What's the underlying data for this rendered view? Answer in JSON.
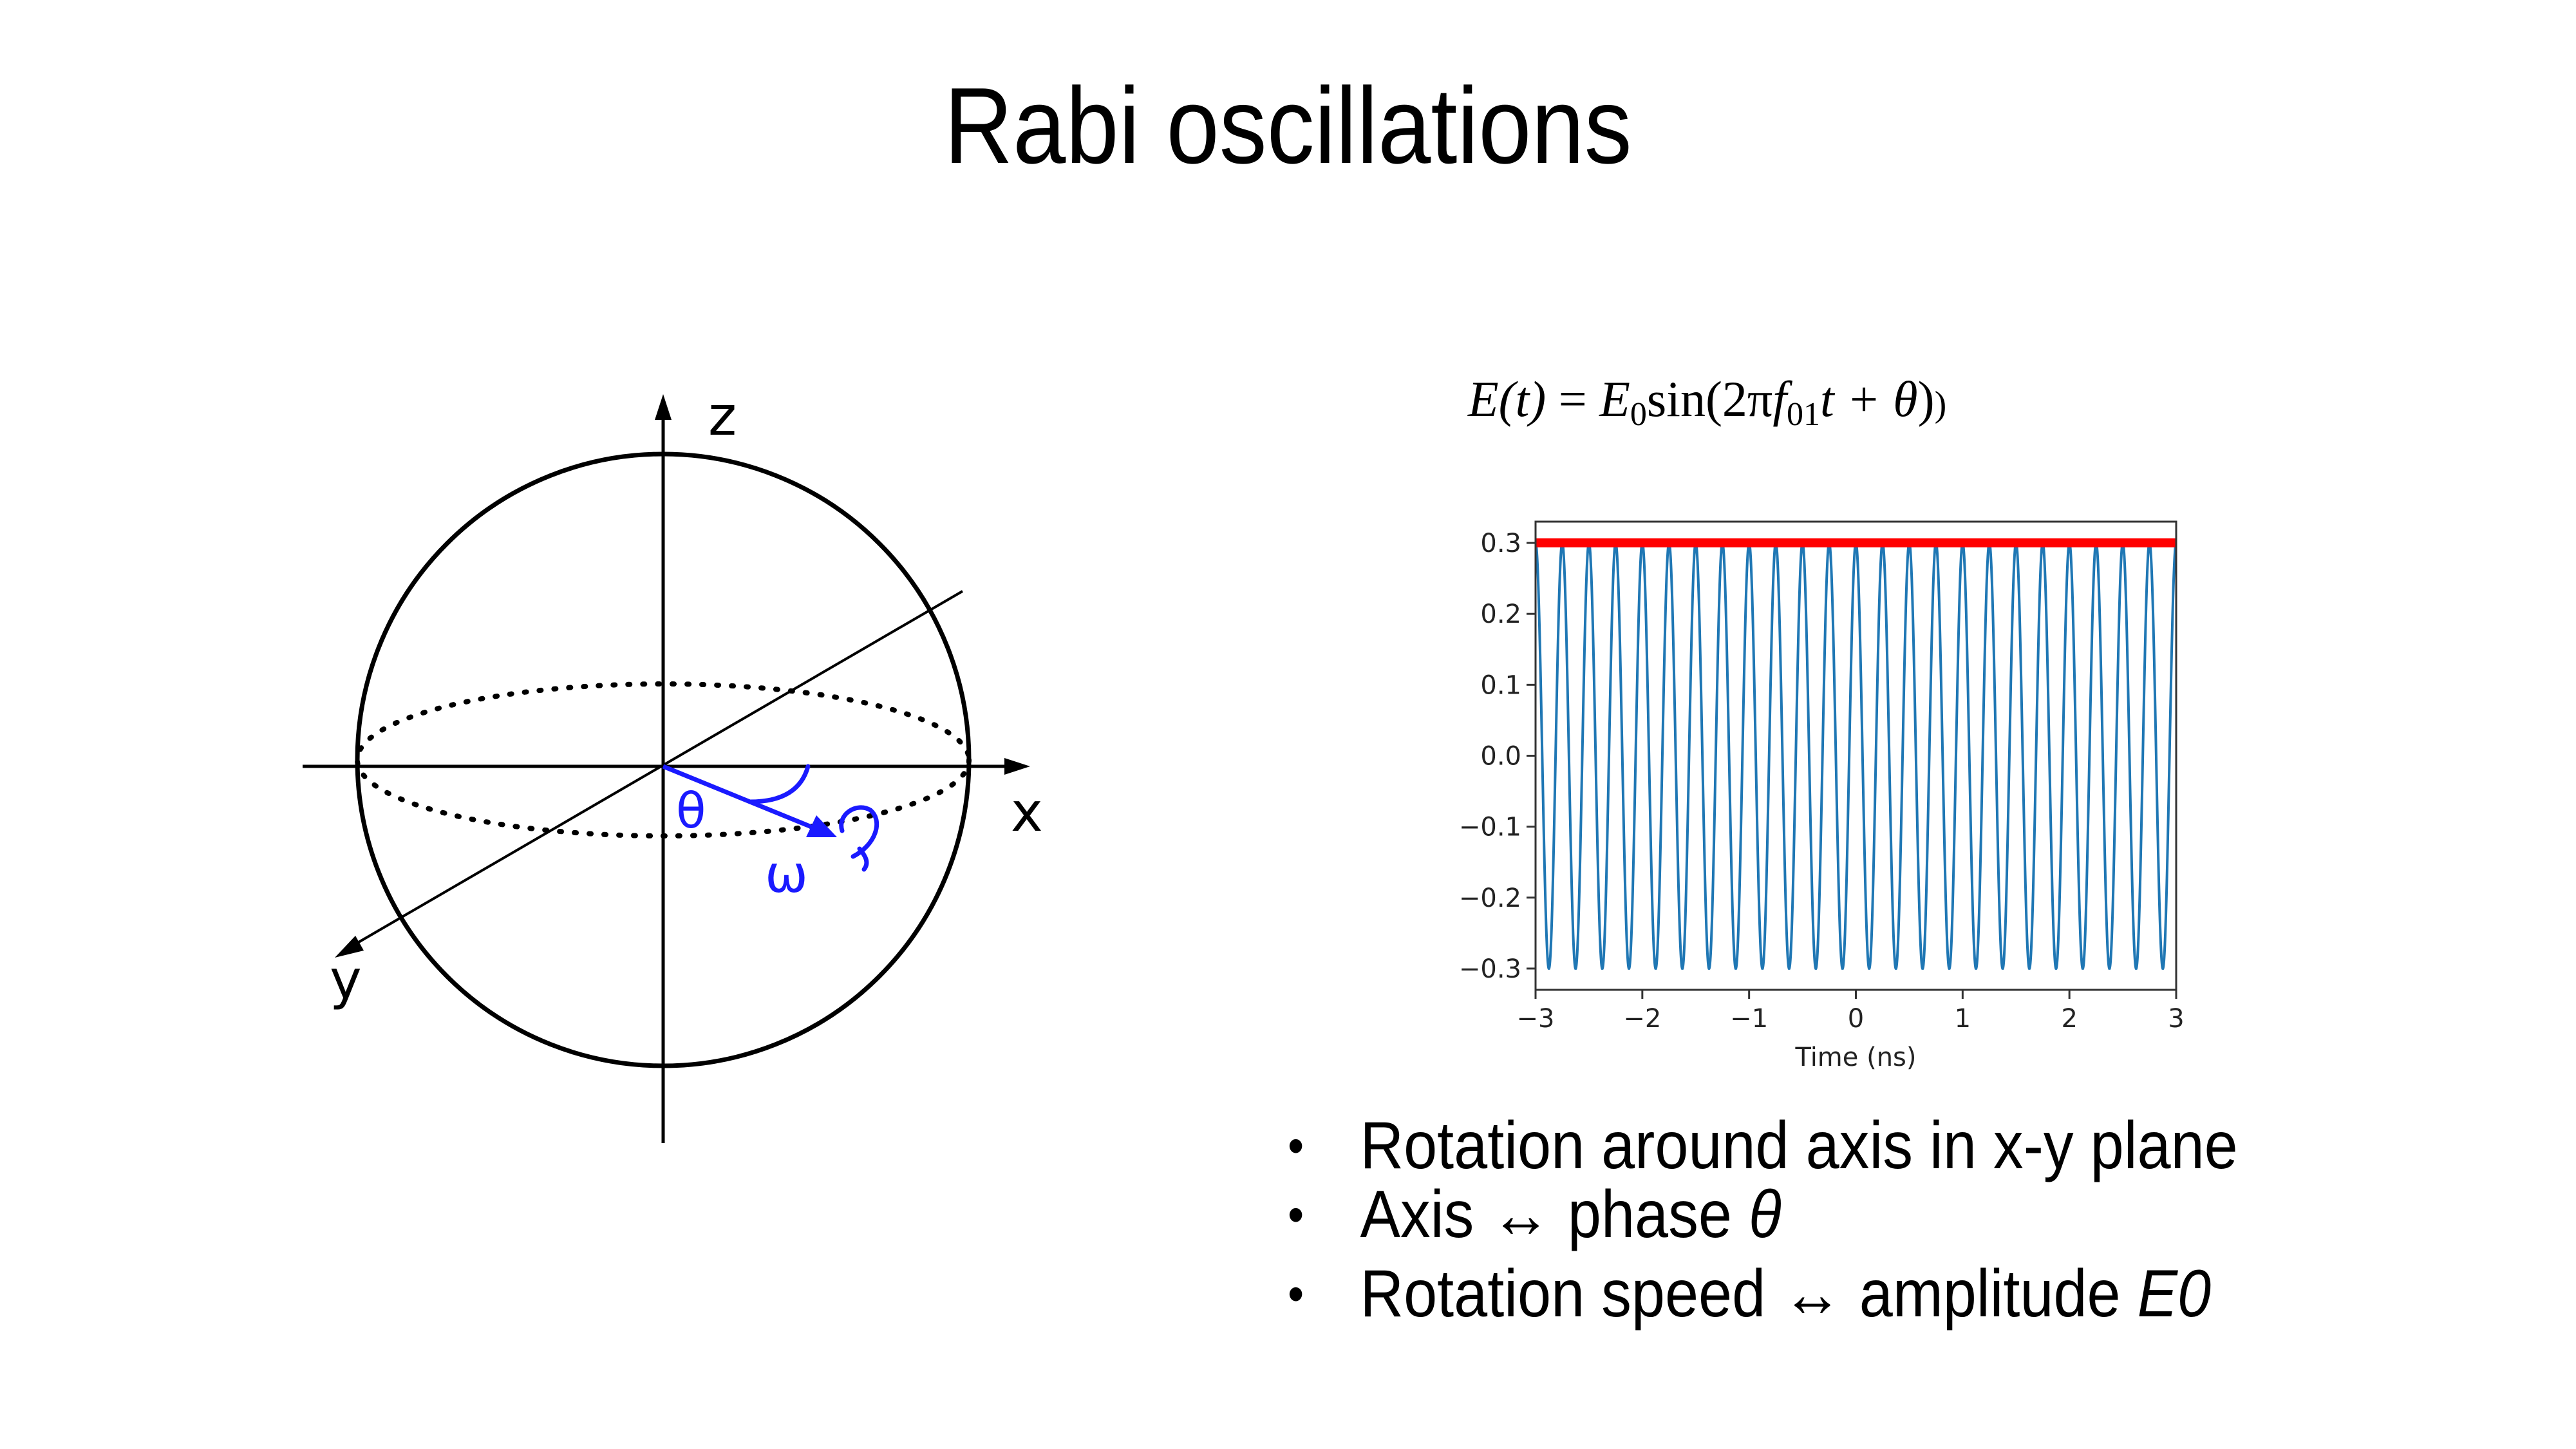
{
  "slide": {
    "title": "Rabi oscillations",
    "formula": {
      "lhs": "E(t)",
      "eq": " = ",
      "amp": "E",
      "amp_sub": "0",
      "fn": "sin(2π",
      "freq": "f",
      "freq_sub": "01",
      "tail": "t + θ",
      "close": ")",
      "extra": ")"
    },
    "bullets": [
      {
        "text": "Rotation around axis in x-y plane",
        "italic": ""
      },
      {
        "text": "Axis ↔ phase ",
        "italic": "θ"
      },
      {
        "text": "Rotation speed ↔ amplitude ",
        "italic": "E0"
      }
    ]
  },
  "bloch": {
    "axis_labels": {
      "z": "z",
      "x": "x",
      "y": "y"
    },
    "vector_labels": {
      "theta": "θ",
      "omega": "ω"
    },
    "colors": {
      "axes": "#000000",
      "vector": "#1a1aff"
    },
    "icons": [
      "rotation-arrow-icon",
      "angle-arc-icon"
    ]
  },
  "chart_data": {
    "type": "line",
    "function": "0.3*sin(2π f t)",
    "amplitude": 0.3,
    "cycles_in_range": 24,
    "xlabel": "Time (ns)",
    "ylabel": "",
    "title": "",
    "xlim": [
      -3,
      3
    ],
    "ylim": [
      -0.33,
      0.33
    ],
    "x_ticks": [
      -3,
      -2,
      -1,
      0,
      1,
      2,
      3
    ],
    "x_tick_labels": [
      "−3",
      "−2",
      "−1",
      "0",
      "1",
      "2",
      "3"
    ],
    "y_ticks": [
      0.3,
      0.2,
      0.1,
      0.0,
      -0.1,
      -0.2,
      -0.3
    ],
    "y_tick_labels": [
      "0.3",
      "0.2",
      "0.1",
      "0.0",
      "−0.1",
      "−0.2",
      "−0.3"
    ],
    "series": [
      {
        "kind": "oscillation",
        "color": "#1f77b4"
      },
      {
        "kind": "envelope",
        "value": 0.3,
        "color": "#ff0000"
      }
    ],
    "grid": false,
    "legend": "none"
  }
}
